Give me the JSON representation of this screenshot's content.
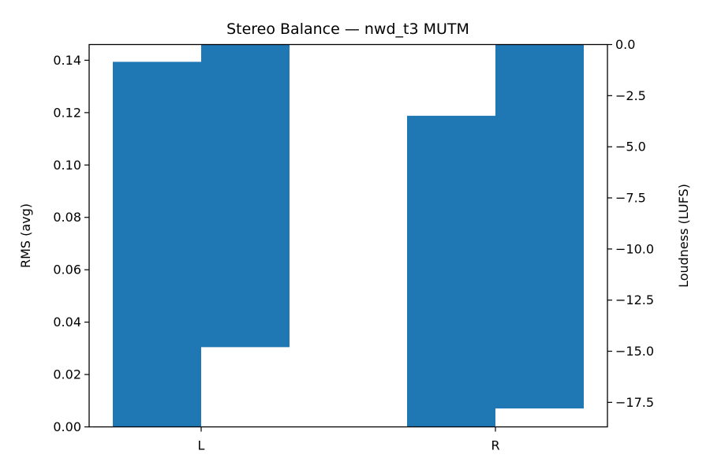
{
  "chart_data": {
    "type": "bar",
    "title": "Stereo Balance — nwd_t3 MUTM",
    "categories": [
      "L",
      "R"
    ],
    "color": "#1f77b4",
    "left_axis": {
      "label": "RMS (avg)",
      "lim": [
        0.0,
        0.146
      ],
      "ticks": [
        "0.00",
        "0.02",
        "0.04",
        "0.06",
        "0.08",
        "0.10",
        "0.12",
        "0.14"
      ]
    },
    "right_axis": {
      "label": "Loudness (LUFS)",
      "lim": [
        -18.7,
        0.0
      ],
      "ticks": [
        "0.0",
        "−2.5",
        "−5.0",
        "−7.5",
        "−10.0",
        "−12.5",
        "−15.0",
        "−17.5"
      ]
    },
    "series": [
      {
        "axis": "left",
        "values": [
          0.1394,
          0.1188
        ]
      },
      {
        "axis": "right",
        "values": [
          -14.8,
          -17.8
        ]
      }
    ],
    "grid": false,
    "legend": "none"
  }
}
